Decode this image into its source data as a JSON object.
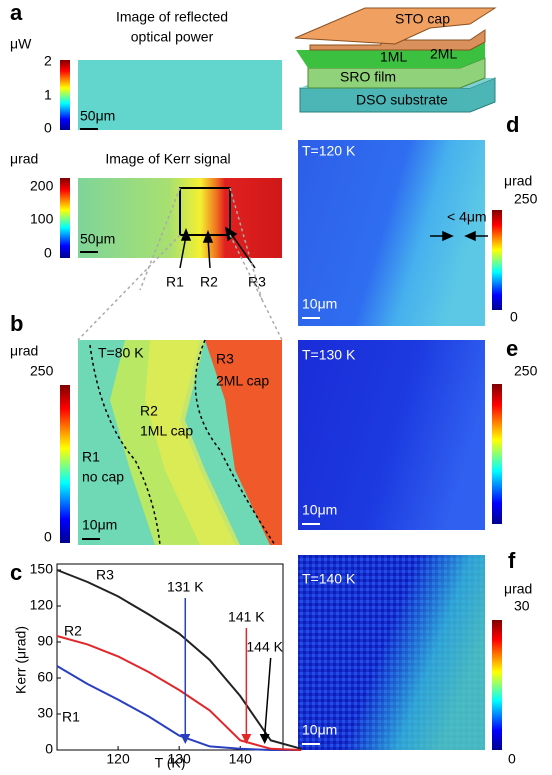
{
  "panels": {
    "a": {
      "label": "a",
      "top": {
        "title": [
          "Image of reflected",
          "optical power"
        ],
        "unit": "μW",
        "colorbar_ticks": [
          "2",
          "1",
          "0"
        ],
        "scalebar": "50μm"
      },
      "bottom": {
        "title": "Image of Kerr signal",
        "unit": "μrad",
        "colorbar_ticks": [
          "200",
          "100",
          "0"
        ],
        "scalebar": "50μm",
        "regions": [
          "R1",
          "R2",
          "R3"
        ]
      }
    },
    "schematic": {
      "labels": [
        "STO cap",
        "1ML",
        "2ML",
        "SRO film",
        "DSO substrate"
      ]
    },
    "b": {
      "label": "b",
      "unit": "μrad",
      "colorbar_ticks": [
        "250",
        "0"
      ],
      "temperature": "T=80 K",
      "regions": [
        [
          "R1",
          "no cap"
        ],
        [
          "R2",
          "1ML cap"
        ],
        [
          "R3",
          "2ML cap"
        ]
      ],
      "scalebar": "10μm"
    },
    "c": {
      "label": "c"
    },
    "d": {
      "label": "d",
      "temperature": "T=120 K",
      "unit": "μrad",
      "colorbar_ticks": [
        "250",
        "0"
      ],
      "annotation": "< 4μm",
      "scalebar": "10μm"
    },
    "e": {
      "label": "e",
      "temperature": "T=130 K",
      "colorbar_ticks": [
        "250"
      ],
      "scalebar": "10μm"
    },
    "f": {
      "label": "f",
      "temperature": "T=140 K",
      "unit": "μrad",
      "colorbar_ticks": [
        "30",
        "0"
      ],
      "scalebar": "10μm"
    }
  },
  "chart_data": {
    "type": "line",
    "x_label": "T (K)",
    "y_label": "Kerr (μrad)",
    "x": [
      110,
      115,
      120,
      125,
      130,
      135,
      140,
      145,
      150
    ],
    "series": [
      {
        "name": "R1",
        "color": "#2a3fbf",
        "values": [
          70,
          55,
          42,
          28,
          12,
          3,
          1,
          0,
          0
        ]
      },
      {
        "name": "R2",
        "color": "#e0282a",
        "values": [
          95,
          88,
          78,
          65,
          50,
          33,
          8,
          1,
          0
        ]
      },
      {
        "name": "R3",
        "color": "#222222",
        "values": [
          150,
          140,
          128,
          113,
          97,
          75,
          45,
          8,
          1
        ]
      }
    ],
    "annotations": [
      {
        "value": 131,
        "label": "131 K",
        "color": "#2a3fbf"
      },
      {
        "value": 141,
        "label": "141 K",
        "color": "#e0282a"
      },
      {
        "value": 144,
        "label": "144 K",
        "color": "#000000"
      }
    ],
    "xlim": [
      110,
      147
    ],
    "ylim": [
      0,
      155
    ],
    "xticks": [
      120,
      130,
      140
    ],
    "yticks": [
      0,
      30,
      60,
      90,
      120,
      150
    ]
  }
}
